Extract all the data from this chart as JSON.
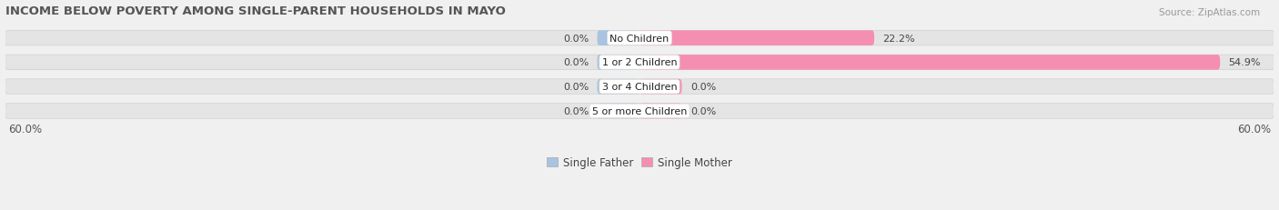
{
  "title": "INCOME BELOW POVERTY AMONG SINGLE-PARENT HOUSEHOLDS IN MAYO",
  "source": "Source: ZipAtlas.com",
  "categories": [
    "No Children",
    "1 or 2 Children",
    "3 or 4 Children",
    "5 or more Children"
  ],
  "single_father": [
    0.0,
    0.0,
    0.0,
    0.0
  ],
  "single_mother": [
    22.2,
    54.9,
    0.0,
    0.0
  ],
  "father_color": "#a8c4e0",
  "mother_color": "#f48fb1",
  "xlim": 60.0,
  "bar_height": 0.62,
  "background_color": "#f0f0f0",
  "bar_bg_color": "#e4e4e4",
  "title_fontsize": 9.5,
  "label_fontsize": 8.0,
  "tick_fontsize": 8.5,
  "legend_fontsize": 8.5,
  "source_fontsize": 7.5,
  "min_bar_display": 4.0
}
